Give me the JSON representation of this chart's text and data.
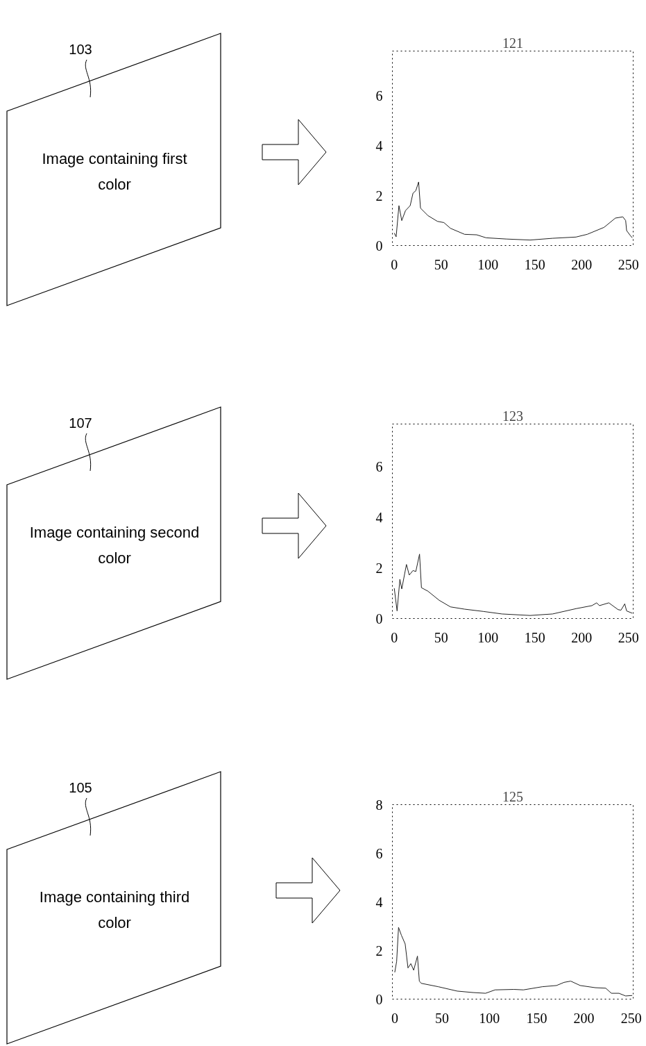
{
  "chart_data": [
    {
      "type": "line",
      "title": "121",
      "annotations": [
        "103",
        "Image containing first color"
      ],
      "line_style": "solid",
      "grid": false,
      "xlim": [
        -2,
        255
      ],
      "ylim": [
        0,
        7.8
      ],
      "xticks": [
        0,
        50,
        100,
        150,
        200,
        250
      ],
      "yticks": [
        0,
        2,
        4,
        6
      ],
      "series": [
        {
          "color": "#222222",
          "x": [
            0,
            2,
            5,
            8,
            12,
            17,
            20,
            23,
            26,
            28,
            36,
            46,
            53,
            60,
            75,
            88,
            98,
            120,
            145,
            169,
            194,
            206,
            224,
            236,
            244,
            247,
            248,
            252,
            254
          ],
          "values": [
            0.5,
            0.35,
            1.6,
            1.0,
            1.4,
            1.6,
            2.1,
            2.2,
            2.55,
            1.5,
            1.2,
            0.97,
            0.92,
            0.69,
            0.45,
            0.43,
            0.31,
            0.26,
            0.22,
            0.29,
            0.34,
            0.45,
            0.73,
            1.1,
            1.15,
            1.0,
            0.6,
            0.4,
            0.31
          ]
        }
      ]
    },
    {
      "type": "line",
      "title": "123",
      "annotations": [
        "107",
        "Image containing second color"
      ],
      "line_style": "solid",
      "grid": false,
      "xlim": [
        -2,
        255
      ],
      "ylim": [
        0,
        7.7
      ],
      "xticks": [
        0,
        50,
        100,
        150,
        200,
        250
      ],
      "yticks": [
        0,
        2,
        4,
        6
      ],
      "series": [
        {
          "color": "#222222",
          "x": [
            0,
            3,
            6,
            8,
            13,
            16,
            20,
            23,
            27,
            29,
            36,
            48,
            60,
            75,
            95,
            115,
            145,
            169,
            194,
            211,
            216,
            219,
            229,
            239,
            242,
            246,
            248,
            254
          ],
          "values": [
            1.2,
            0.3,
            1.55,
            1.17,
            2.14,
            1.72,
            1.9,
            1.86,
            2.55,
            1.22,
            1.08,
            0.72,
            0.46,
            0.37,
            0.28,
            0.18,
            0.12,
            0.18,
            0.39,
            0.51,
            0.62,
            0.51,
            0.62,
            0.35,
            0.33,
            0.58,
            0.3,
            0.21
          ]
        }
      ]
    },
    {
      "type": "line",
      "title": "125",
      "annotations": [
        "105",
        "Image containing third color"
      ],
      "line_style": "solid",
      "grid": false,
      "xlim": [
        -2.5,
        252
      ],
      "ylim": [
        0,
        8
      ],
      "xticks": [
        0,
        50,
        100,
        150,
        200,
        250
      ],
      "yticks": [
        0,
        2,
        4,
        6,
        8
      ],
      "series": [
        {
          "color": "#222222",
          "x": [
            0,
            2,
            4,
            7,
            11,
            14,
            17,
            20,
            24,
            26,
            28,
            46,
            66,
            83,
            96,
            106,
            126,
            136,
            156,
            171,
            179,
            186,
            196,
            212,
            223,
            229,
            237,
            244,
            251
          ],
          "values": [
            1.1,
            1.55,
            2.95,
            2.63,
            2.27,
            1.28,
            1.46,
            1.19,
            1.77,
            0.74,
            0.65,
            0.51,
            0.33,
            0.27,
            0.24,
            0.38,
            0.4,
            0.38,
            0.51,
            0.56,
            0.69,
            0.74,
            0.56,
            0.47,
            0.45,
            0.24,
            0.24,
            0.13,
            0.15
          ]
        }
      ]
    }
  ]
}
